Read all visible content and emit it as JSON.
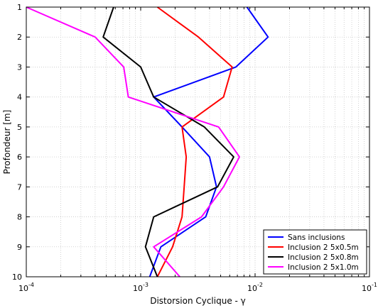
{
  "chart_data": {
    "type": "line",
    "xlabel": "Distorsion Cyclique - γ",
    "ylabel": "Profondeur [m]",
    "x_scale": "log",
    "xlim": [
      0.0001,
      0.1
    ],
    "ylim": [
      1,
      10
    ],
    "y_reversed": true,
    "grid": true,
    "legend_position": "bottom-right",
    "x_ticks": [
      {
        "value": 0.0001,
        "label": "10"
      },
      {
        "value": 0.001,
        "label": "10"
      },
      {
        "value": 0.01,
        "label": "10"
      },
      {
        "value": 0.1,
        "label": "10"
      }
    ],
    "x_tick_exponents": [
      "-4",
      "-3",
      "-2",
      "-1"
    ],
    "y_ticks": [
      1,
      2,
      3,
      4,
      5,
      6,
      7,
      8,
      9,
      10
    ],
    "series": [
      {
        "name": "Sans inclusions",
        "color": "#0000ff",
        "x": [
          0.0085,
          0.013,
          0.0068,
          0.0013,
          0.0023,
          0.004,
          0.0046,
          0.0037,
          0.0015,
          0.0012
        ],
        "y": [
          1,
          2,
          3,
          4,
          5,
          6,
          7,
          8,
          9,
          10
        ]
      },
      {
        "name": "Inclusion 2 5x0.5m",
        "color": "#ff0000",
        "x": [
          0.0014,
          0.0032,
          0.0063,
          0.0053,
          0.0023,
          0.0025,
          0.0024,
          0.0023,
          0.0019,
          0.0014
        ],
        "y": [
          1,
          2,
          3,
          4,
          5,
          6,
          7,
          8,
          9,
          10
        ]
      },
      {
        "name": "Inclusion 2 5x0.8m",
        "color": "#000000",
        "x": [
          0.00058,
          0.00047,
          0.001,
          0.0013,
          0.0036,
          0.0065,
          0.0047,
          0.0013,
          0.0011,
          0.0014
        ],
        "y": [
          1,
          2,
          3,
          4,
          5,
          6,
          7,
          8,
          9,
          10
        ]
      },
      {
        "name": "Inclusion 2 5x1.0m",
        "color": "#ff00ff",
        "x": [
          0.0001,
          0.0004,
          0.00071,
          0.00078,
          0.0048,
          0.0073,
          0.0053,
          0.0034,
          0.0013,
          0.0022
        ],
        "y": [
          1,
          2,
          3,
          4,
          5,
          6,
          7,
          8,
          9,
          10
        ]
      }
    ]
  }
}
